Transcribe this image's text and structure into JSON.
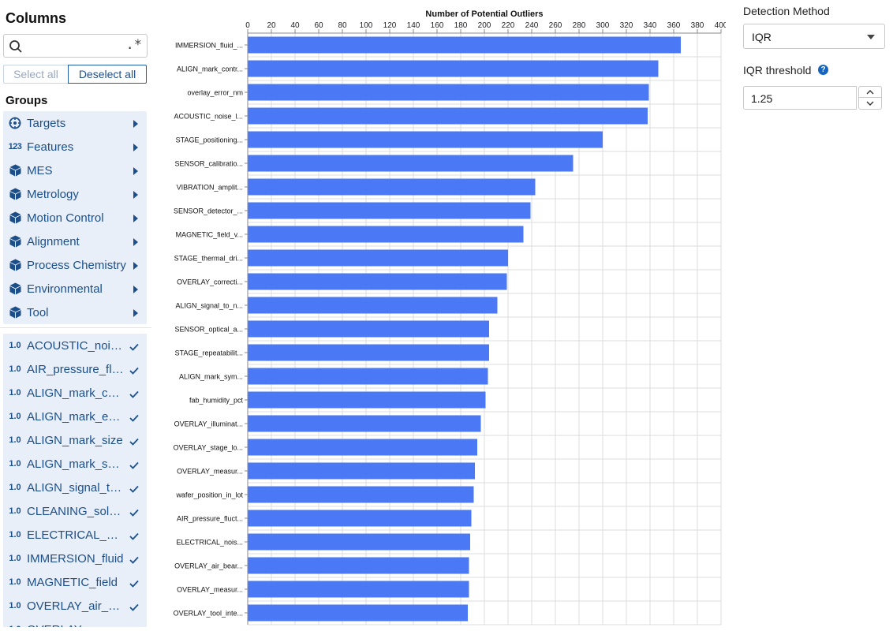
{
  "left_panel": {
    "title": "Columns",
    "search": {
      "placeholder": "",
      "value": "",
      "regex_toggle": ".*"
    },
    "select_all_label": "Select all",
    "deselect_all_label": "Deselect all",
    "groups_title": "Groups",
    "groups": [
      {
        "label": "Targets",
        "icon": "target-icon"
      },
      {
        "label": "Features",
        "icon": "numeric-icon"
      },
      {
        "label": "MES",
        "icon": "cube-icon"
      },
      {
        "label": "Metrology",
        "icon": "cube-icon"
      },
      {
        "label": "Motion Control",
        "icon": "cube-icon"
      },
      {
        "label": "Alignment",
        "icon": "cube-icon"
      },
      {
        "label": "Process Chemistry",
        "icon": "cube-icon"
      },
      {
        "label": "Environmental",
        "icon": "cube-icon"
      },
      {
        "label": "Tool",
        "icon": "cube-icon"
      }
    ],
    "numeric_icon_text": "123",
    "column_icon_text": "1.0",
    "columns": [
      {
        "label": "ACOUSTIC_noise_level",
        "checked": true
      },
      {
        "label": "AIR_pressure_fluctuation",
        "checked": true
      },
      {
        "label": "ALIGN_mark_contrast",
        "checked": true
      },
      {
        "label": "ALIGN_mark_edge",
        "checked": true
      },
      {
        "label": "ALIGN_mark_size",
        "checked": true
      },
      {
        "label": "ALIGN_mark_symmetry",
        "checked": true
      },
      {
        "label": "ALIGN_signal_to_noise",
        "checked": true
      },
      {
        "label": "CLEANING_solution",
        "checked": true
      },
      {
        "label": "ELECTRICAL_noise",
        "checked": true
      },
      {
        "label": "IMMERSION_fluid",
        "checked": true
      },
      {
        "label": "MAGNETIC_field",
        "checked": true
      },
      {
        "label": "OVERLAY_air_bearing",
        "checked": true
      },
      {
        "label": "OVERLAY_correction",
        "checked": true
      }
    ]
  },
  "right_panel": {
    "detection_method_label": "Detection Method",
    "detection_method_value": "IQR",
    "iqr_label": "IQR threshold",
    "help_symbol": "?",
    "iqr_value": "1.25"
  },
  "chart_data": {
    "type": "bar",
    "orientation": "horizontal",
    "title": "Number of Potential Outliers",
    "xlabel": "",
    "ylabel": "",
    "xlim": [
      0,
      400
    ],
    "x_ticks": [
      0,
      20,
      40,
      60,
      80,
      100,
      120,
      140,
      160,
      180,
      200,
      220,
      240,
      260,
      280,
      300,
      320,
      340,
      360,
      380,
      400
    ],
    "x_axis_position": "top",
    "grid": true,
    "bar_color": "#4b78f4",
    "categories": [
      "IMMERSION_fluid_...",
      "ALIGN_mark_contr...",
      "overlay_error_nm",
      "ACOUSTIC_noise_l...",
      "STAGE_positioning...",
      "SENSOR_calibratio...",
      "VIBRATION_amplit...",
      "SENSOR_detector_...",
      "MAGNETIC_field_v...",
      "STAGE_thermal_dri...",
      "OVERLAY_correcti...",
      "ALIGN_signal_to_n...",
      "SENSOR_optical_a...",
      "STAGE_repeatabilit...",
      "ALIGN_mark_sym...",
      "fab_humidity_pct",
      "OVERLAY_illuminat...",
      "OVERLAY_stage_lo...",
      "OVERLAY_measur...",
      "wafer_position_in_lot",
      "AIR_pressure_fluct...",
      "ELECTRICAL_nois...",
      "OVERLAY_air_bear...",
      "OVERLAY_measur...",
      "OVERLAY_tool_inte..."
    ],
    "values": [
      366,
      347,
      339,
      338,
      300,
      275,
      243,
      239,
      233,
      220,
      219,
      211,
      204,
      204,
      203,
      201,
      197,
      194,
      192,
      191,
      189,
      188,
      187,
      187,
      186
    ]
  }
}
